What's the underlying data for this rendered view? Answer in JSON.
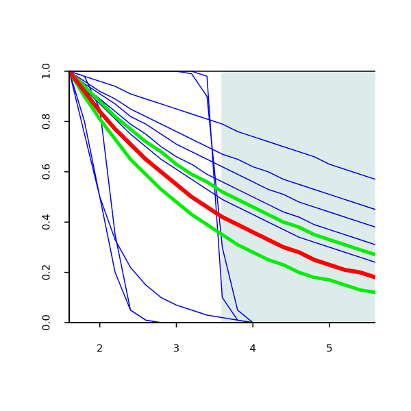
{
  "chart_data": {
    "type": "line",
    "x": [
      1.6,
      1.8,
      2.0,
      2.2,
      2.4,
      2.6,
      2.8,
      3.0,
      3.2,
      3.4,
      3.6,
      3.8,
      4.0,
      4.2,
      4.4,
      4.6,
      4.8,
      5.0,
      5.2,
      5.4,
      5.6
    ],
    "xlim": [
      1.6,
      5.6
    ],
    "ylim": [
      0,
      1
    ],
    "xticks": [
      2,
      3,
      4,
      5
    ],
    "yticks": [
      {
        "value": 0,
        "label": "0.0"
      },
      0.2,
      0.4,
      0.6,
      0.8,
      {
        "value": 1,
        "label": "1.0"
      }
    ],
    "shaded_xrange": [
      3.59,
      5.6
    ],
    "shade_color": "#deebeb",
    "series": [
      {
        "color": "#0000ee",
        "line_width": 1.5,
        "values": [
          1,
          0.98,
          0.96,
          0.94,
          0.91,
          0.89,
          0.87,
          0.85,
          0.83,
          0.81,
          0.79,
          0.76,
          0.74,
          0.72,
          0.7,
          0.68,
          0.66,
          0.63,
          0.61,
          0.59,
          0.57
        ]
      },
      {
        "color": "#0000ee",
        "line_width": 1.5,
        "values": [
          1,
          0.96,
          0.92,
          0.89,
          0.85,
          0.82,
          0.79,
          0.76,
          0.73,
          0.7,
          0.67,
          0.65,
          0.62,
          0.6,
          0.57,
          0.55,
          0.53,
          0.51,
          0.49,
          0.47,
          0.45
        ]
      },
      {
        "color": "#0000ee",
        "line_width": 1.5,
        "values": [
          1,
          0.95,
          0.91,
          0.87,
          0.82,
          0.79,
          0.75,
          0.71,
          0.68,
          0.65,
          0.62,
          0.59,
          0.56,
          0.53,
          0.51,
          0.48,
          0.46,
          0.44,
          0.42,
          0.4,
          0.38
        ]
      },
      {
        "color": "#0000ee",
        "line_width": 1.5,
        "values": [
          1,
          0.94,
          0.89,
          0.84,
          0.79,
          0.75,
          0.7,
          0.66,
          0.63,
          0.59,
          0.56,
          0.53,
          0.5,
          0.47,
          0.44,
          0.42,
          0.39,
          0.37,
          0.35,
          0.33,
          0.31
        ]
      },
      {
        "color": "#0000ee",
        "line_width": 1.5,
        "values": [
          1,
          0.93,
          0.87,
          0.81,
          0.75,
          0.7,
          0.65,
          0.61,
          0.57,
          0.53,
          0.49,
          0.46,
          0.43,
          0.4,
          0.37,
          0.34,
          0.32,
          0.3,
          0.28,
          0.26,
          0.24
        ]
      },
      {
        "color": "#0000ee",
        "line_width": 1.5,
        "values": [
          1,
          0.8,
          0.5,
          0.2,
          0.05,
          0.01,
          0,
          0,
          0,
          0,
          0,
          0,
          0,
          0,
          0,
          0,
          0,
          0,
          0,
          0,
          0
        ]
      },
      {
        "color": "#0000ee",
        "line_width": 1.5,
        "values": [
          1,
          0.98,
          0.85,
          0.35,
          0.05,
          0.01,
          0,
          0,
          0,
          0,
          0,
          0,
          0,
          0,
          0,
          0,
          0,
          0,
          0,
          0,
          0
        ]
      },
      {
        "color": "#0000ee",
        "line_width": 1.5,
        "values": [
          1,
          0.75,
          0.5,
          0.33,
          0.22,
          0.15,
          0.1,
          0.07,
          0.05,
          0.03,
          0.02,
          0.01,
          0,
          0,
          0,
          0,
          0,
          0,
          0,
          0,
          0
        ]
      },
      {
        "color": "#0000ee",
        "line_width": 1.5,
        "values": [
          1,
          1,
          1,
          1,
          1,
          1,
          1,
          1,
          1,
          0.98,
          0.1,
          0.01,
          0,
          0,
          0,
          0,
          0,
          0,
          0,
          0,
          0
        ]
      },
      {
        "color": "#0000ee",
        "line_width": 1.5,
        "values": [
          1,
          1,
          1,
          1,
          1,
          1,
          1,
          1,
          0.99,
          0.9,
          0.3,
          0.05,
          0,
          0,
          0,
          0,
          0,
          0,
          0,
          0,
          0
        ]
      },
      {
        "color": "#00ee00",
        "line_width": 5,
        "values": [
          1,
          0.94,
          0.88,
          0.82,
          0.77,
          0.72,
          0.68,
          0.63,
          0.59,
          0.56,
          0.52,
          0.49,
          0.46,
          0.43,
          0.4,
          0.38,
          0.35,
          0.33,
          0.31,
          0.29,
          0.27
        ]
      },
      {
        "color": "#00ee00",
        "line_width": 5,
        "values": [
          1,
          0.9,
          0.81,
          0.73,
          0.65,
          0.59,
          0.53,
          0.48,
          0.43,
          0.39,
          0.35,
          0.31,
          0.28,
          0.25,
          0.23,
          0.2,
          0.18,
          0.17,
          0.15,
          0.13,
          0.12
        ]
      },
      {
        "color": "#ff0000",
        "line_width": 6,
        "values": [
          1,
          0.92,
          0.84,
          0.77,
          0.71,
          0.65,
          0.6,
          0.55,
          0.5,
          0.46,
          0.42,
          0.39,
          0.36,
          0.33,
          0.3,
          0.28,
          0.25,
          0.23,
          0.21,
          0.2,
          0.18
        ]
      }
    ]
  }
}
